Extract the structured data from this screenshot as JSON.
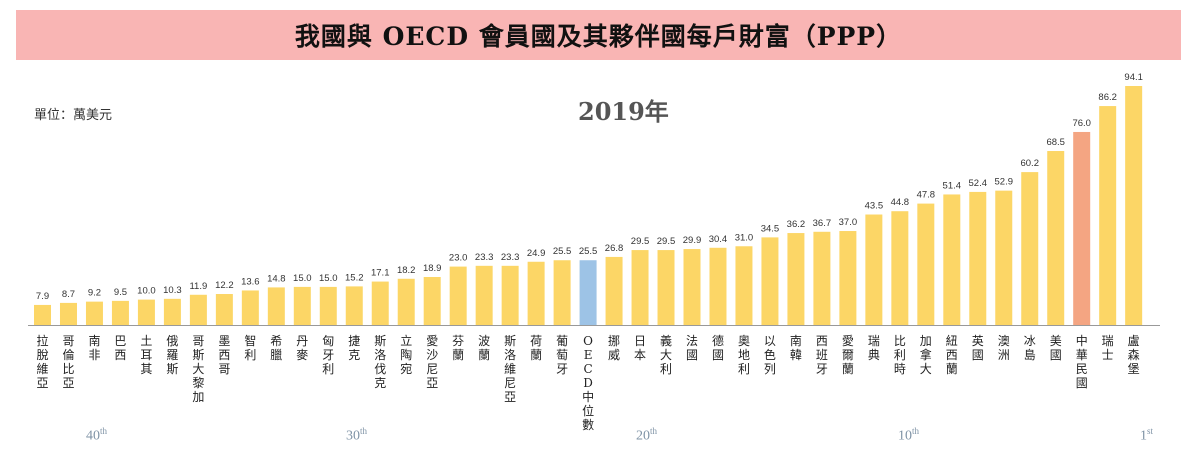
{
  "header": {
    "title": "我國與 OECD 會員國及其夥伴國每戶財富（PPP）"
  },
  "unit_label": "單位：萬美元",
  "year_label": "2019年",
  "colors": {
    "default_bar": "#fcd666",
    "oecd_median_bar": "#9dc3e6",
    "taiwan_bar": "#f4a582",
    "title_bg": "#f9b5b4",
    "baseline": "#999999",
    "rank_text": "#7f93a6"
  },
  "rank_labels": [
    {
      "num": "40",
      "suffix": "th"
    },
    {
      "num": "30",
      "suffix": "th"
    },
    {
      "num": "20",
      "suffix": "th"
    },
    {
      "num": "10",
      "suffix": "th"
    },
    {
      "num": "1",
      "suffix": "st"
    }
  ],
  "chart_data": {
    "type": "bar",
    "title": "2019年",
    "ylabel": "單位：萬美元",
    "ylim": [
      0,
      95
    ],
    "grid": false,
    "categories": [
      "拉脫維亞",
      "哥倫比亞",
      "南非",
      "巴西",
      "土耳其",
      "俄羅斯",
      "哥斯大黎加",
      "墨西哥",
      "智利",
      "希臘",
      "丹麥",
      "匈牙利",
      "捷克",
      "斯洛伐克",
      "立陶宛",
      "愛沙尼亞",
      "芬蘭",
      "波蘭",
      "斯洛維尼亞",
      "荷蘭",
      "葡萄牙",
      "OECD中位數",
      "挪威",
      "日本",
      "義大利",
      "法國",
      "德國",
      "奧地利",
      "以色列",
      "南韓",
      "西班牙",
      "愛爾蘭",
      "瑞典",
      "比利時",
      "加拿大",
      "紐西蘭",
      "英國",
      "澳洲",
      "冰島",
      "美國",
      "中華民國",
      "瑞士",
      "盧森堡"
    ],
    "values": [
      7.9,
      8.7,
      9.2,
      9.5,
      10.0,
      10.3,
      11.9,
      12.2,
      13.6,
      14.8,
      15.0,
      15.0,
      15.2,
      17.1,
      18.2,
      18.9,
      23.0,
      23.3,
      23.3,
      24.9,
      25.5,
      25.5,
      26.8,
      29.5,
      29.5,
      29.9,
      30.4,
      31.0,
      34.5,
      36.2,
      36.7,
      37.0,
      43.5,
      44.8,
      47.8,
      51.4,
      52.4,
      52.9,
      60.2,
      68.5,
      76.0,
      86.2,
      94.1
    ],
    "value_labels": [
      "7.9",
      "8.7",
      "9.2",
      "9.5",
      "10.0",
      "10.3",
      "11.9",
      "12.2",
      "13.6",
      "14.8",
      "15.0",
      "15.0",
      "15.2",
      "17.1",
      "18.2",
      "18.9",
      "23.0",
      "23.3",
      "23.3",
      "24.9",
      "25.5",
      "25.5",
      "26.8",
      "29.5",
      "29.5",
      "29.9",
      "30.4",
      "31.0",
      "34.5",
      "36.2",
      "36.7",
      "37.0",
      "43.5",
      "44.8",
      "47.8",
      "51.4",
      "52.4",
      "52.9",
      "60.2",
      "68.5",
      "76.0",
      "86.2",
      "94.1"
    ],
    "highlight": {
      "OECD中位數": "oecd_median_bar",
      "中華民國": "taiwan_bar"
    }
  }
}
